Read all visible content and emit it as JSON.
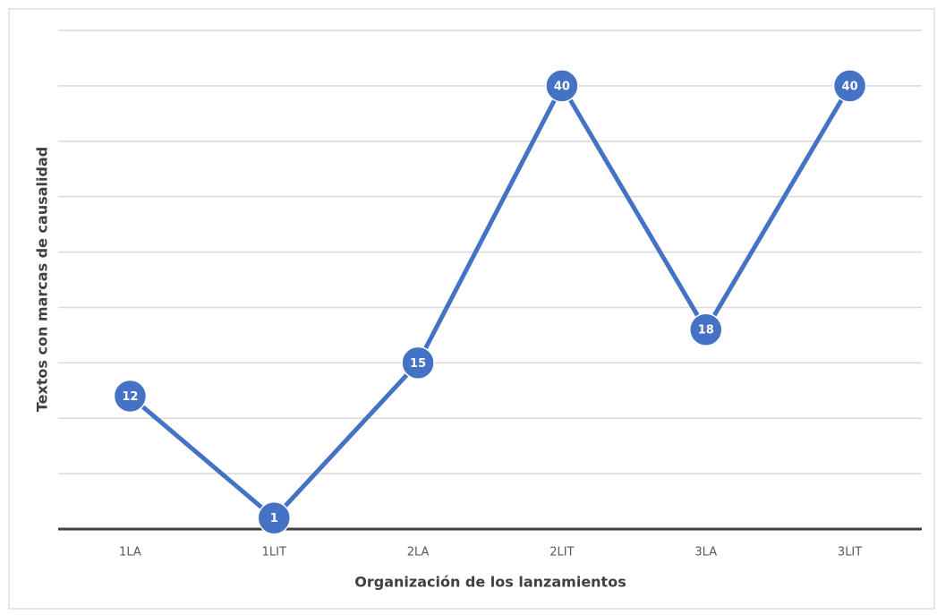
{
  "chart_data": {
    "type": "line",
    "x_label": "Organización de los lanzamientos",
    "y_label": "Textos con marcas de causalidad",
    "categories": [
      "1LA",
      "1LIT",
      "2LA",
      "2LIT",
      "3LA",
      "3LIT"
    ],
    "series": [
      {
        "name": "Textos",
        "color": "#4472c4",
        "values": [
          12,
          1,
          15,
          40,
          18,
          40
        ]
      }
    ],
    "ylim": [
      0,
      45
    ],
    "yticks": [
      0,
      5,
      10,
      15,
      20,
      25,
      30,
      35,
      40,
      45
    ],
    "grid": true
  }
}
